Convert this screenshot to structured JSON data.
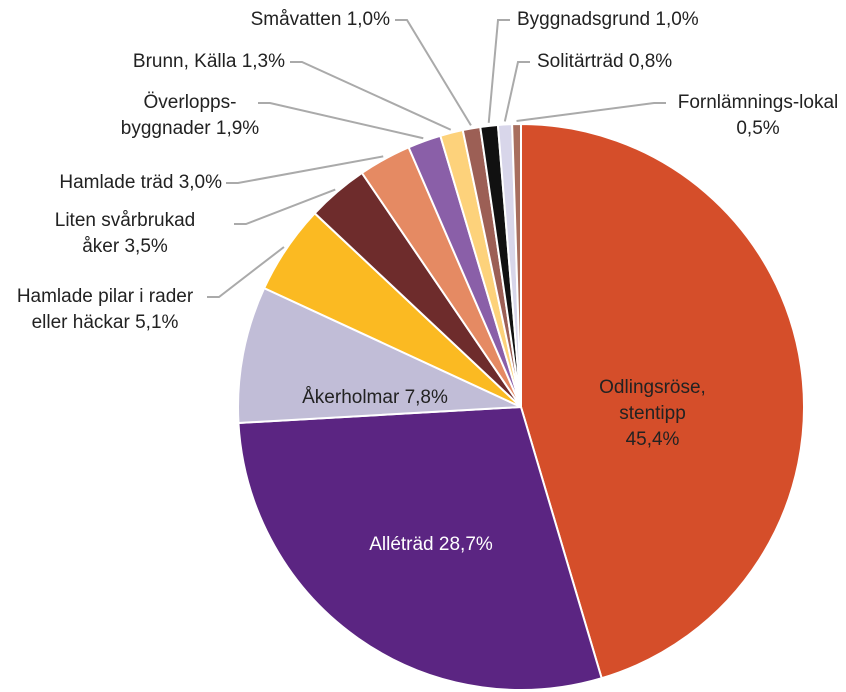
{
  "chart_data": {
    "type": "pie",
    "categories": [
      "Odlingsröse, stentipp",
      "Alléträd",
      "Åkerholmar",
      "Hamlade pilar i rader eller häckar",
      "Liten svårbrukad åker",
      "Hamlade träd",
      "Överlopps-byggnader",
      "Brunn, Källa",
      "Småvatten",
      "Byggnadsgrund",
      "Solitärträd",
      "Fornlämnings-lokal"
    ],
    "values": [
      45.4,
      28.7,
      7.8,
      5.1,
      3.5,
      3.0,
      1.9,
      1.3,
      1.0,
      1.0,
      0.8,
      0.5
    ],
    "value_labels": [
      "45,4%",
      "28,7%",
      "7,8%",
      "5,1%",
      "3,5%",
      "3,0%",
      "1,9%",
      "1,3%",
      "1,0%",
      "1,0%",
      "0,8%",
      "0,5%"
    ],
    "colors": [
      "#d54e2a",
      "#5b2582",
      "#c1bdd7",
      "#fbba22",
      "#6e2c2c",
      "#e58a63",
      "#8a5fa8",
      "#fdd27b",
      "#9c5f55",
      "#111111",
      "#d8d6ea",
      "#a86e5e"
    ]
  }
}
